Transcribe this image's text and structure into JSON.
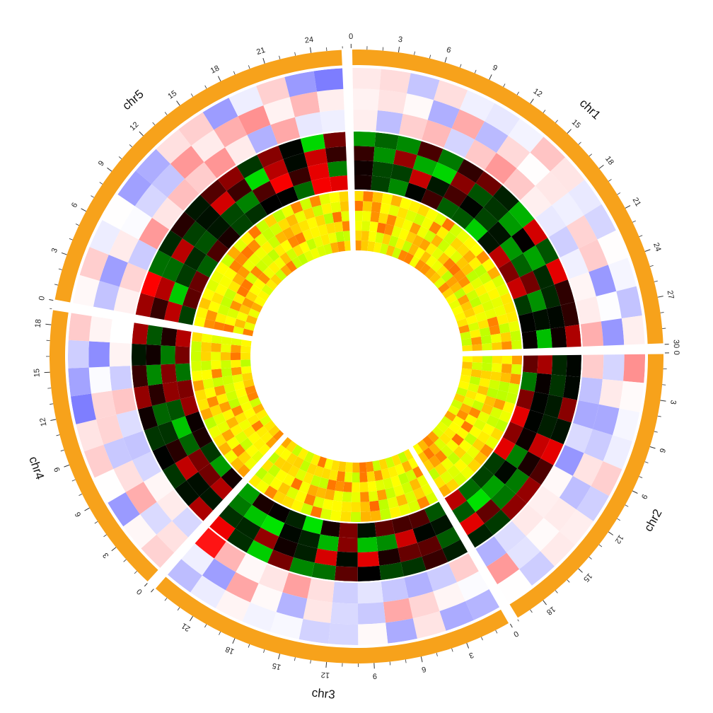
{
  "chart_data": {
    "type": "heatmap",
    "layout": "circular",
    "chromosomes": [
      {
        "name": "chr1",
        "length": 30,
        "tick_labels": [
          "0",
          "3",
          "6",
          "9",
          "12",
          "15",
          "18",
          "21",
          "24",
          "27",
          "30"
        ]
      },
      {
        "name": "chr2",
        "length": 20,
        "tick_labels": [
          "0",
          "3",
          "6",
          "9",
          "12",
          "15",
          "18"
        ]
      },
      {
        "name": "chr3",
        "length": 24,
        "tick_labels": [
          "0",
          "3",
          "6",
          "9",
          "12",
          "15",
          "18",
          "21"
        ]
      },
      {
        "name": "chr4",
        "length": 19,
        "tick_labels": [
          "0",
          "3",
          "6",
          "9",
          "12",
          "15",
          "18"
        ]
      },
      {
        "name": "chr5",
        "length": 26,
        "tick_labels": [
          "0",
          "3",
          "6",
          "9",
          "12",
          "15",
          "18",
          "21",
          "24"
        ]
      }
    ],
    "tracks": [
      {
        "palette": "blue-white-red",
        "bins_per_chrom": 5,
        "rows": 3
      },
      {
        "palette": "green-black-red",
        "bins_per_chrom": 5,
        "rows": 4
      },
      {
        "palette": "green-yellow-red",
        "bins_per_chrom": 5,
        "rows": 6
      }
    ],
    "colors": {
      "ideogram": "#F7A21B",
      "blue": "#0000FF",
      "white": "#FFFFFF",
      "red": "#FF0000",
      "green": "#00FF00",
      "black": "#000000",
      "yellow": "#FFFF00"
    }
  }
}
